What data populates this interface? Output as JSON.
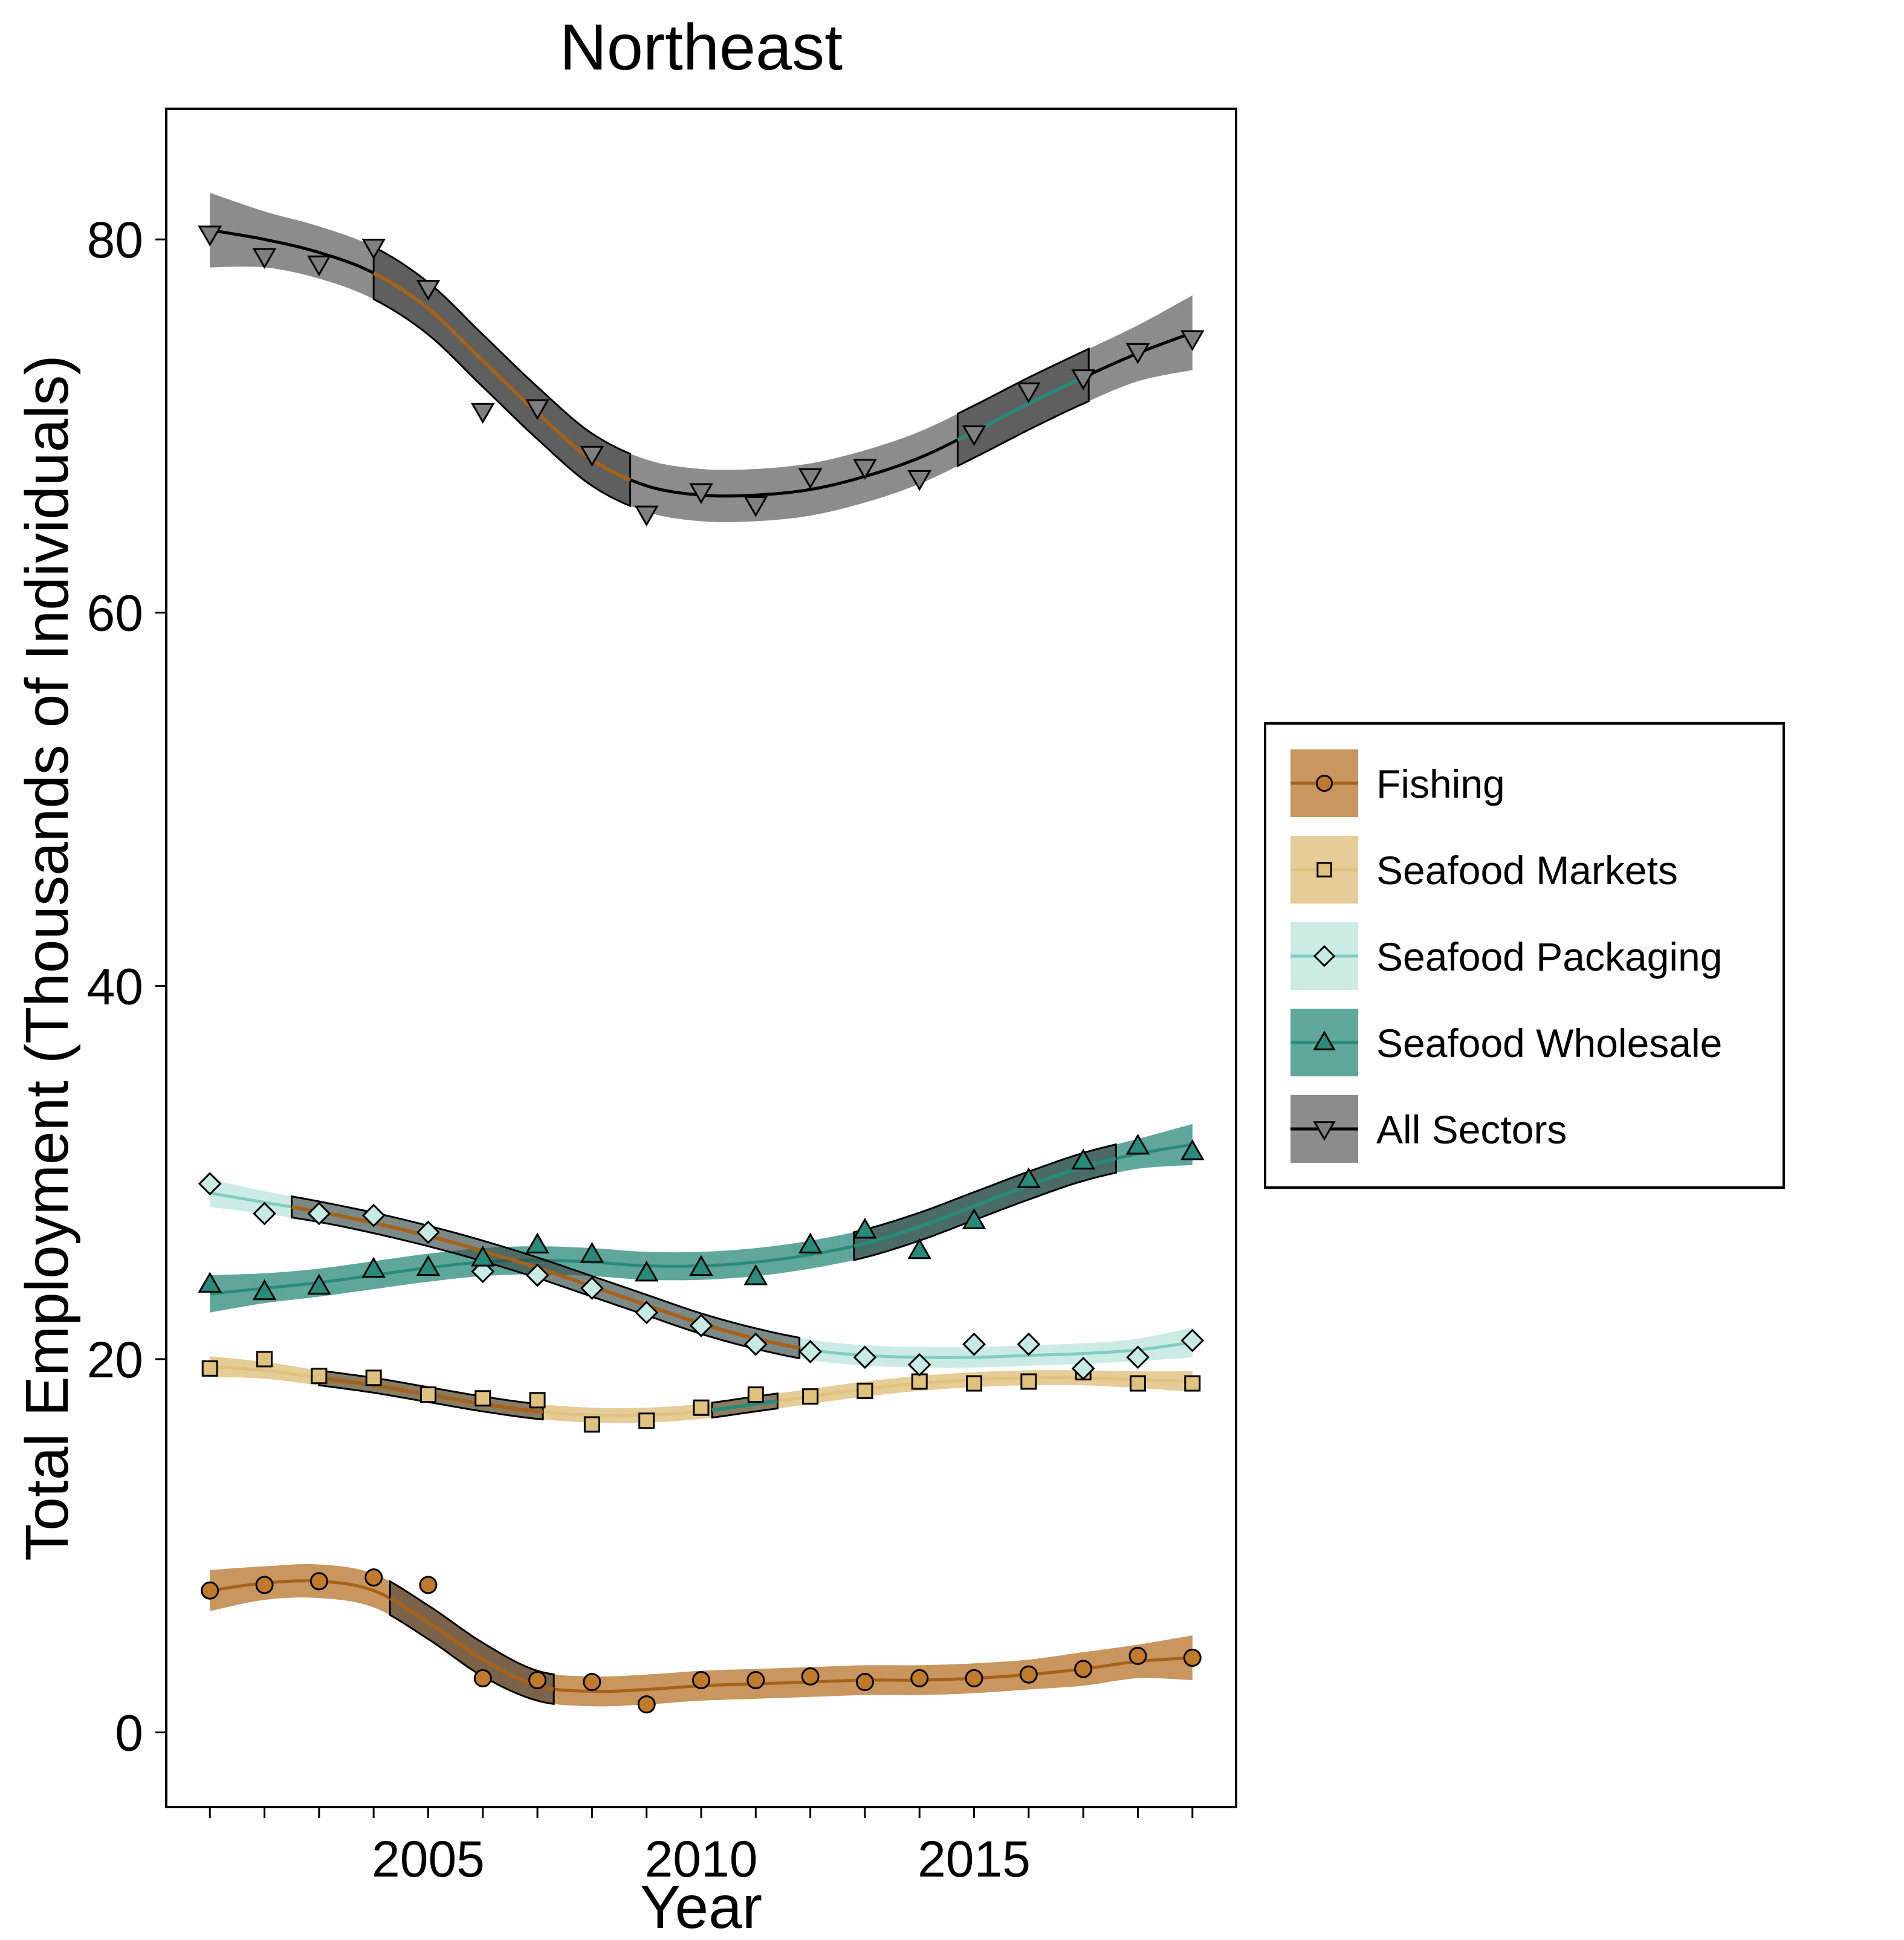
{
  "chart_data": {
    "type": "line",
    "title": "Northeast",
    "xlabel": "Year",
    "ylabel": "Total Employment (Thousands of Individuals)",
    "xlim": [
      2000.2,
      2019.8
    ],
    "ylim": [
      -4,
      87
    ],
    "x_ticks": [
      2001,
      2002,
      2003,
      2004,
      2005,
      2006,
      2007,
      2008,
      2009,
      2010,
      2011,
      2012,
      2013,
      2014,
      2015,
      2016,
      2017,
      2018,
      2019
    ],
    "x_tick_labels": [
      {
        "value": 2005,
        "label": "2005"
      },
      {
        "value": 2010,
        "label": "2010"
      },
      {
        "value": 2015,
        "label": "2015"
      }
    ],
    "y_ticks": [
      {
        "value": 0,
        "label": "0"
      },
      {
        "value": 20,
        "label": "20"
      },
      {
        "value": 40,
        "label": "40"
      },
      {
        "value": 60,
        "label": "60"
      },
      {
        "value": 80,
        "label": "80"
      }
    ],
    "grid": false,
    "legend_position": "right",
    "x": [
      2001,
      2002,
      2003,
      2004,
      2005,
      2006,
      2007,
      2008,
      2009,
      2010,
      2011,
      2012,
      2013,
      2014,
      2015,
      2016,
      2017,
      2018,
      2019
    ],
    "series": [
      {
        "name": "Fishing",
        "marker": "circle",
        "color": "#a6611a",
        "band_color": "#c8965e",
        "values": [
          7.6,
          7.9,
          8.1,
          8.3,
          7.9,
          2.9,
          2.8,
          2.7,
          1.5,
          2.8,
          2.8,
          3.0,
          2.7,
          2.9,
          2.9,
          3.1,
          3.4,
          4.1,
          4.0
        ],
        "smooth": [
          7.6,
          8.0,
          8.1,
          7.6,
          5.9,
          3.9,
          2.5,
          2.2,
          2.3,
          2.5,
          2.6,
          2.7,
          2.8,
          2.8,
          2.9,
          3.1,
          3.4,
          3.8,
          4.0
        ],
        "band_halfwidth": [
          1.1,
          0.9,
          0.9,
          0.9,
          0.9,
          0.9,
          0.8,
          0.8,
          0.8,
          0.8,
          0.8,
          0.8,
          0.8,
          0.8,
          0.8,
          0.8,
          0.9,
          0.9,
          1.2
        ]
      },
      {
        "name": "Seafood Markets",
        "marker": "square",
        "color": "#dfc27d",
        "band_color": "#e6cc96",
        "values": [
          19.5,
          20.0,
          19.1,
          19.0,
          18.1,
          17.9,
          17.8,
          16.5,
          16.7,
          17.4,
          18.1,
          18.0,
          18.3,
          18.8,
          18.7,
          18.8,
          19.3,
          18.7,
          18.7
        ],
        "smooth": [
          19.6,
          19.4,
          19.0,
          18.6,
          18.1,
          17.6,
          17.2,
          17.0,
          17.0,
          17.2,
          17.6,
          18.0,
          18.4,
          18.7,
          18.9,
          19.0,
          19.0,
          18.9,
          18.8
        ],
        "band_halfwidth": [
          0.55,
          0.45,
          0.4,
          0.4,
          0.4,
          0.4,
          0.4,
          0.4,
          0.4,
          0.4,
          0.4,
          0.4,
          0.4,
          0.4,
          0.4,
          0.4,
          0.4,
          0.45,
          0.55
        ]
      },
      {
        "name": "Seafood Packaging",
        "marker": "diamond",
        "color": "#80cdc1",
        "band_color": "#cdebe5",
        "values": [
          29.4,
          27.8,
          27.8,
          27.7,
          26.8,
          24.7,
          24.5,
          23.8,
          22.5,
          21.8,
          20.8,
          20.4,
          20.1,
          19.7,
          20.8,
          20.8,
          19.5,
          20.1,
          21.0
        ],
        "smooth": [
          28.9,
          28.4,
          27.9,
          27.3,
          26.6,
          25.8,
          24.9,
          23.9,
          22.9,
          21.9,
          21.1,
          20.5,
          20.2,
          20.1,
          20.1,
          20.2,
          20.3,
          20.5,
          20.9
        ],
        "band_halfwidth": [
          0.75,
          0.6,
          0.55,
          0.55,
          0.55,
          0.55,
          0.55,
          0.55,
          0.55,
          0.55,
          0.55,
          0.55,
          0.55,
          0.55,
          0.55,
          0.55,
          0.55,
          0.6,
          0.8
        ]
      },
      {
        "name": "Seafood Wholesale",
        "marker": "triangle-up",
        "color": "#2a8a7a",
        "band_color": "#5fa69b",
        "values": [
          24.0,
          23.6,
          23.9,
          24.8,
          24.9,
          25.4,
          26.1,
          25.6,
          24.6,
          24.9,
          24.4,
          26.1,
          26.9,
          25.8,
          27.4,
          29.6,
          30.6,
          31.4,
          31.1
        ],
        "smooth": [
          23.5,
          23.8,
          24.1,
          24.5,
          24.9,
          25.2,
          25.3,
          25.2,
          25.0,
          25.0,
          25.2,
          25.6,
          26.2,
          27.1,
          28.2,
          29.3,
          30.3,
          31.0,
          31.5
        ],
        "band_halfwidth": [
          1.0,
          0.8,
          0.75,
          0.75,
          0.75,
          0.75,
          0.75,
          0.75,
          0.75,
          0.75,
          0.75,
          0.75,
          0.75,
          0.75,
          0.75,
          0.75,
          0.75,
          0.8,
          1.1
        ]
      },
      {
        "name": "All Sectors",
        "marker": "triangle-down",
        "color": "#000000",
        "band_color": "#8c8c8c",
        "values": [
          80.3,
          79.1,
          78.7,
          79.6,
          77.4,
          70.8,
          71.0,
          68.5,
          65.3,
          66.5,
          65.8,
          67.3,
          67.8,
          67.2,
          69.6,
          71.9,
          72.6,
          74.0,
          74.7
        ],
        "smooth": [
          80.5,
          80.0,
          79.3,
          78.2,
          76.3,
          73.5,
          70.7,
          68.2,
          66.8,
          66.3,
          66.3,
          66.6,
          67.3,
          68.3,
          69.7,
          71.2,
          72.6,
          73.9,
          75.0
        ],
        "band_halfwidth": [
          2.0,
          1.5,
          1.4,
          1.4,
          1.4,
          1.4,
          1.4,
          1.4,
          1.4,
          1.4,
          1.4,
          1.4,
          1.4,
          1.4,
          1.4,
          1.4,
          1.4,
          1.5,
          2.0
        ]
      }
    ],
    "trend_highlights": [
      {
        "series": "All Sectors",
        "from": 2004,
        "to": 2008.7,
        "direction": "decreasing",
        "color": "#a6611a"
      },
      {
        "series": "All Sectors",
        "from": 2014.7,
        "to": 2017.1,
        "direction": "increasing",
        "color": "#2a8a7a"
      },
      {
        "series": "Fishing",
        "from": 2004.3,
        "to": 2007.3,
        "direction": "decreasing",
        "color": "#a6611a"
      },
      {
        "series": "Seafood Packaging",
        "from": 2002.5,
        "to": 2011.8,
        "direction": "decreasing",
        "color": "#a6611a"
      },
      {
        "series": "Seafood Markets",
        "from": 2003,
        "to": 2007.1,
        "direction": "decreasing",
        "color": "#a6611a"
      },
      {
        "series": "Seafood Markets",
        "from": 2010.2,
        "to": 2011.4,
        "direction": "increasing",
        "color": "#2a8a7a"
      },
      {
        "series": "Seafood Wholesale",
        "from": 2012.8,
        "to": 2017.6,
        "direction": "increasing",
        "color": "#2a8a7a"
      }
    ]
  }
}
